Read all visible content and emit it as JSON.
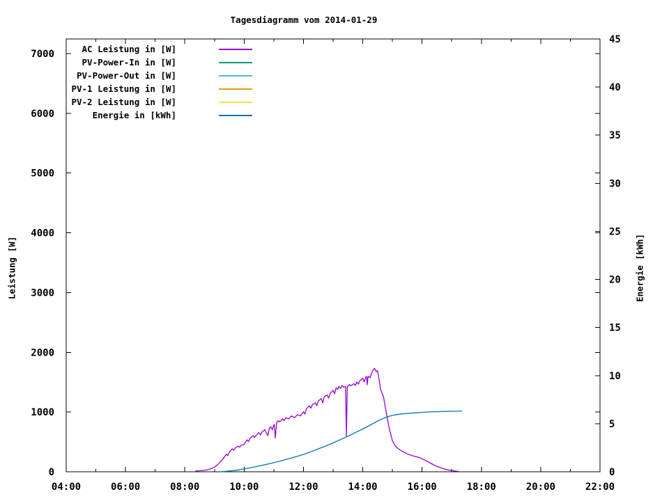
{
  "title": "Tagesdiagramm vom 2014-01-29",
  "legend": {
    "items": [
      {
        "label": "AC Leistung in [W]",
        "color": "#9400d3"
      },
      {
        "label": "PV-Power-In in [W]",
        "color": "#009e73"
      },
      {
        "label": "PV-Power-Out in [W]",
        "color": "#56b4e9"
      },
      {
        "label": "PV-1 Leistung in [W]",
        "color": "#e69f00"
      },
      {
        "label": "PV-2 Leistung in [W]",
        "color": "#f0e442"
      },
      {
        "label": "Energie in [kWh]",
        "color": "#0072b2"
      }
    ]
  },
  "chart_data": {
    "type": "line",
    "title": "Tagesdiagramm vom 2014-01-29",
    "x_axis": {
      "label": "",
      "tick_hours": [
        4,
        6,
        8,
        10,
        12,
        14,
        16,
        18,
        20,
        22
      ],
      "tick_labels": [
        "04:00",
        "06:00",
        "08:00",
        "10:00",
        "12:00",
        "14:00",
        "16:00",
        "18:00",
        "20:00",
        "22:00"
      ],
      "minor_every_hours": 1,
      "range_hours": [
        4,
        22
      ]
    },
    "y_left": {
      "label": "Leistung [W]",
      "ticks": [
        0,
        1000,
        2000,
        3000,
        4000,
        5000,
        6000,
        7000
      ],
      "range": [
        0,
        7244
      ]
    },
    "y_right": {
      "label": "Energie [kWh]",
      "ticks": [
        0,
        5,
        10,
        15,
        20,
        25,
        30,
        35,
        40,
        45
      ],
      "range": [
        0,
        45
      ]
    },
    "grid": false,
    "legend_position": "top-left-inside",
    "series": [
      {
        "name": "AC Leistung in [W]",
        "color": "#9400d3",
        "axis": "left",
        "points": [
          [
            8.35,
            10
          ],
          [
            8.5,
            18
          ],
          [
            8.6,
            22
          ],
          [
            8.7,
            28
          ],
          [
            8.8,
            38
          ],
          [
            8.9,
            55
          ],
          [
            9.0,
            78
          ],
          [
            9.1,
            115
          ],
          [
            9.2,
            165
          ],
          [
            9.3,
            225
          ],
          [
            9.4,
            295
          ],
          [
            9.45,
            270
          ],
          [
            9.5,
            330
          ],
          [
            9.6,
            385
          ],
          [
            9.65,
            360
          ],
          [
            9.7,
            400
          ],
          [
            9.8,
            430
          ],
          [
            9.85,
            410
          ],
          [
            9.9,
            445
          ],
          [
            10.0,
            455
          ],
          [
            10.05,
            500
          ],
          [
            10.1,
            535
          ],
          [
            10.15,
            505
          ],
          [
            10.2,
            560
          ],
          [
            10.3,
            605
          ],
          [
            10.35,
            575
          ],
          [
            10.45,
            635
          ],
          [
            10.5,
            655
          ],
          [
            10.55,
            615
          ],
          [
            10.6,
            665
          ],
          [
            10.7,
            705
          ],
          [
            10.75,
            645
          ],
          [
            10.8,
            605
          ],
          [
            10.85,
            725
          ],
          [
            10.9,
            755
          ],
          [
            10.95,
            705
          ],
          [
            11.0,
            785
          ],
          [
            11.02,
            790
          ],
          [
            11.05,
            565
          ],
          [
            11.1,
            825
          ],
          [
            11.15,
            855
          ],
          [
            11.2,
            835
          ],
          [
            11.3,
            885
          ],
          [
            11.35,
            855
          ],
          [
            11.4,
            905
          ],
          [
            11.5,
            885
          ],
          [
            11.6,
            935
          ],
          [
            11.7,
            905
          ],
          [
            11.8,
            955
          ],
          [
            11.9,
            935
          ],
          [
            12.0,
            1005
          ],
          [
            12.05,
            965
          ],
          [
            12.1,
            1055
          ],
          [
            12.2,
            1105
          ],
          [
            12.25,
            1065
          ],
          [
            12.3,
            1125
          ],
          [
            12.4,
            1155
          ],
          [
            12.45,
            1105
          ],
          [
            12.5,
            1185
          ],
          [
            12.6,
            1225
          ],
          [
            12.65,
            1155
          ],
          [
            12.7,
            1255
          ],
          [
            12.8,
            1285
          ],
          [
            12.85,
            1235
          ],
          [
            12.9,
            1305
          ],
          [
            13.0,
            1365
          ],
          [
            13.05,
            1305
          ],
          [
            13.1,
            1405
          ],
          [
            13.15,
            1380
          ],
          [
            13.2,
            1425
          ],
          [
            13.25,
            1395
          ],
          [
            13.3,
            1445
          ],
          [
            13.35,
            1415
          ],
          [
            13.42,
            1430
          ],
          [
            13.45,
            600
          ],
          [
            13.48,
            1425
          ],
          [
            13.55,
            1460
          ],
          [
            13.6,
            1440
          ],
          [
            13.7,
            1475
          ],
          [
            13.75,
            1445
          ],
          [
            13.8,
            1505
          ],
          [
            13.85,
            1465
          ],
          [
            13.9,
            1525
          ],
          [
            14.0,
            1565
          ],
          [
            14.05,
            1505
          ],
          [
            14.1,
            1585
          ],
          [
            14.13,
            1590
          ],
          [
            14.15,
            1455
          ],
          [
            14.18,
            1600
          ],
          [
            14.25,
            1575
          ],
          [
            14.3,
            1655
          ],
          [
            14.35,
            1705
          ],
          [
            14.4,
            1730
          ],
          [
            14.45,
            1675
          ],
          [
            14.5,
            1695
          ],
          [
            14.55,
            1545
          ],
          [
            14.6,
            1380
          ],
          [
            14.7,
            1255
          ],
          [
            14.8,
            965
          ],
          [
            14.9,
            710
          ],
          [
            15.0,
            520
          ],
          [
            15.1,
            430
          ],
          [
            15.2,
            385
          ],
          [
            15.3,
            350
          ],
          [
            15.5,
            300
          ],
          [
            15.7,
            265
          ],
          [
            15.9,
            240
          ],
          [
            16.1,
            195
          ],
          [
            16.3,
            140
          ],
          [
            16.5,
            90
          ],
          [
            16.7,
            55
          ],
          [
            16.9,
            28
          ],
          [
            17.1,
            14
          ],
          [
            17.25,
            5
          ]
        ]
      },
      {
        "name": "PV-Power-In in [W]",
        "color": "#009e73",
        "axis": "left",
        "points": []
      },
      {
        "name": "PV-Power-Out in [W]",
        "color": "#56b4e9",
        "axis": "left",
        "points": []
      },
      {
        "name": "PV-1 Leistung in [W]",
        "color": "#e69f00",
        "axis": "left",
        "points": []
      },
      {
        "name": "PV-2 Leistung in [W]",
        "color": "#f0e442",
        "axis": "left",
        "points": []
      },
      {
        "name": "Energie in [kWh]",
        "color": "#0072b2",
        "axis": "right",
        "points": [
          [
            9.2,
            0.01
          ],
          [
            9.3,
            0.03
          ],
          [
            9.5,
            0.08
          ],
          [
            9.75,
            0.17
          ],
          [
            10.0,
            0.3
          ],
          [
            10.25,
            0.44
          ],
          [
            10.5,
            0.6
          ],
          [
            10.75,
            0.77
          ],
          [
            11.0,
            0.95
          ],
          [
            11.25,
            1.14
          ],
          [
            11.5,
            1.35
          ],
          [
            11.75,
            1.57
          ],
          [
            12.0,
            1.8
          ],
          [
            12.25,
            2.08
          ],
          [
            12.5,
            2.38
          ],
          [
            12.75,
            2.68
          ],
          [
            13.0,
            3.0
          ],
          [
            13.25,
            3.35
          ],
          [
            13.5,
            3.7
          ],
          [
            13.75,
            4.07
          ],
          [
            14.0,
            4.45
          ],
          [
            14.25,
            4.85
          ],
          [
            14.5,
            5.27
          ],
          [
            14.6,
            5.42
          ],
          [
            14.7,
            5.55
          ],
          [
            14.8,
            5.68
          ],
          [
            14.9,
            5.78
          ],
          [
            15.0,
            5.86
          ],
          [
            15.1,
            5.92
          ],
          [
            15.25,
            5.99
          ],
          [
            15.5,
            6.07
          ],
          [
            15.75,
            6.13
          ],
          [
            16.0,
            6.18
          ],
          [
            16.25,
            6.22
          ],
          [
            16.5,
            6.25
          ],
          [
            16.75,
            6.27
          ],
          [
            17.0,
            6.29
          ],
          [
            17.2,
            6.3
          ],
          [
            17.35,
            6.3
          ]
        ]
      }
    ]
  }
}
